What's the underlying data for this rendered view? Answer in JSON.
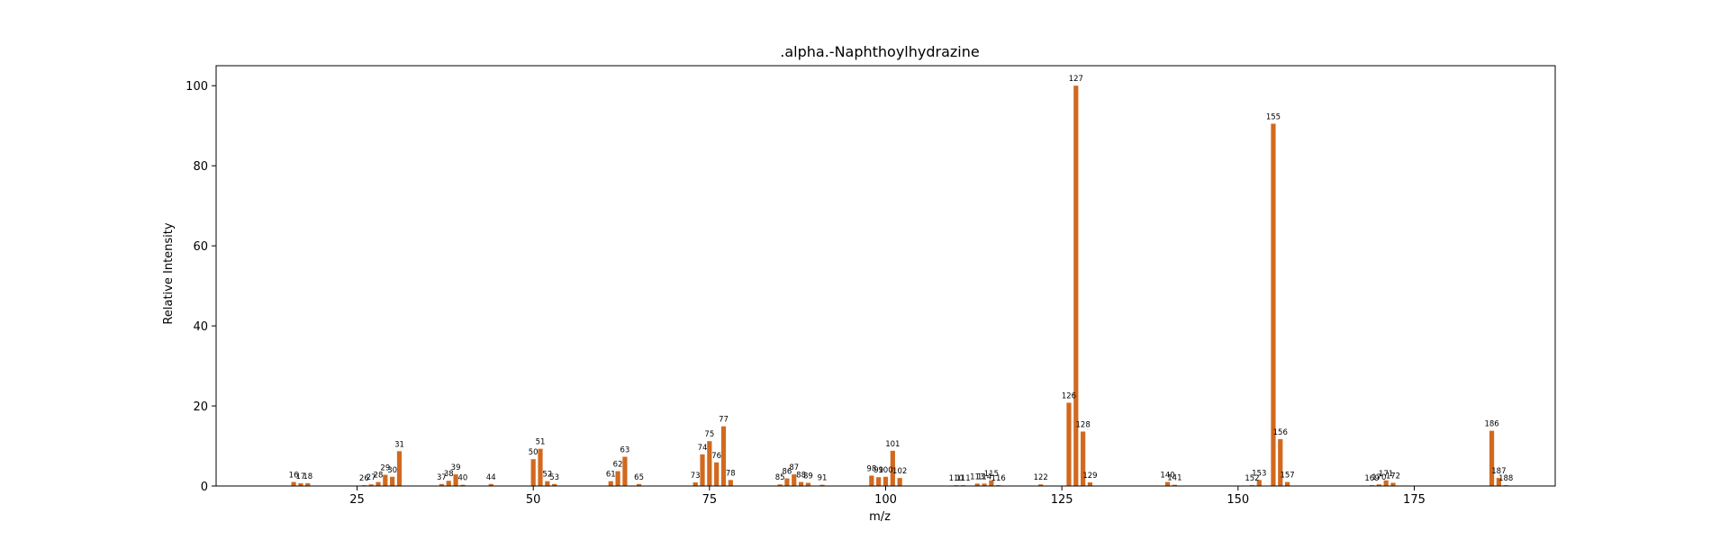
{
  "chart_data": {
    "type": "bar",
    "title": ".alpha.-Naphthoylhydrazine",
    "xlabel": "m/z",
    "ylabel": "Relative Intensity",
    "xlim": [
      5,
      195
    ],
    "ylim": [
      0,
      105
    ],
    "xticks": [
      25,
      50,
      75,
      100,
      125,
      150,
      175
    ],
    "yticks": [
      0,
      20,
      40,
      60,
      80,
      100
    ],
    "grid": false,
    "bar_color": "#d2691e",
    "points": [
      {
        "x": 16,
        "y": 1.0,
        "label": "16"
      },
      {
        "x": 17,
        "y": 0.7,
        "label": "17"
      },
      {
        "x": 18,
        "y": 0.7,
        "label": "18"
      },
      {
        "x": 26,
        "y": 0.2,
        "label": "26"
      },
      {
        "x": 27,
        "y": 0.4,
        "label": "27"
      },
      {
        "x": 28,
        "y": 1.0,
        "label": "28"
      },
      {
        "x": 29,
        "y": 2.8,
        "label": "29"
      },
      {
        "x": 30,
        "y": 2.3,
        "label": "30"
      },
      {
        "x": 31,
        "y": 8.7,
        "label": "31"
      },
      {
        "x": 37,
        "y": 0.5,
        "label": "37"
      },
      {
        "x": 38,
        "y": 1.3,
        "label": "38"
      },
      {
        "x": 39,
        "y": 2.9,
        "label": "39"
      },
      {
        "x": 40,
        "y": 0.3,
        "label": "40"
      },
      {
        "x": 44,
        "y": 0.5,
        "label": "44"
      },
      {
        "x": 50,
        "y": 6.7,
        "label": "50"
      },
      {
        "x": 51,
        "y": 9.3,
        "label": "51"
      },
      {
        "x": 52,
        "y": 1.2,
        "label": "52"
      },
      {
        "x": 53,
        "y": 0.5,
        "label": "53"
      },
      {
        "x": 61,
        "y": 1.2,
        "label": "61"
      },
      {
        "x": 62,
        "y": 3.7,
        "label": "62"
      },
      {
        "x": 63,
        "y": 7.3,
        "label": "63"
      },
      {
        "x": 65,
        "y": 0.5,
        "label": "65"
      },
      {
        "x": 73,
        "y": 0.9,
        "label": "73"
      },
      {
        "x": 74,
        "y": 7.9,
        "label": "74"
      },
      {
        "x": 75,
        "y": 11.2,
        "label": "75"
      },
      {
        "x": 76,
        "y": 5.9,
        "label": "76"
      },
      {
        "x": 77,
        "y": 14.9,
        "label": "77"
      },
      {
        "x": 78,
        "y": 1.5,
        "label": "78"
      },
      {
        "x": 85,
        "y": 0.4,
        "label": "85"
      },
      {
        "x": 86,
        "y": 1.9,
        "label": "86"
      },
      {
        "x": 87,
        "y": 2.9,
        "label": "87"
      },
      {
        "x": 88,
        "y": 1.0,
        "label": "88"
      },
      {
        "x": 89,
        "y": 0.8,
        "label": "89"
      },
      {
        "x": 91,
        "y": 0.3,
        "label": "91"
      },
      {
        "x": 98,
        "y": 2.6,
        "label": "98"
      },
      {
        "x": 99,
        "y": 2.2,
        "label": "99"
      },
      {
        "x": 100,
        "y": 2.3,
        "label": "100"
      },
      {
        "x": 101,
        "y": 8.8,
        "label": "101"
      },
      {
        "x": 102,
        "y": 2.0,
        "label": "102"
      },
      {
        "x": 110,
        "y": 0.2,
        "label": "110"
      },
      {
        "x": 111,
        "y": 0.2,
        "label": "111"
      },
      {
        "x": 113,
        "y": 0.6,
        "label": "113"
      },
      {
        "x": 114,
        "y": 0.6,
        "label": "114"
      },
      {
        "x": 115,
        "y": 1.4,
        "label": "115"
      },
      {
        "x": 116,
        "y": 0.2,
        "label": "116"
      },
      {
        "x": 122,
        "y": 0.4,
        "label": "122"
      },
      {
        "x": 126,
        "y": 20.8,
        "label": "126"
      },
      {
        "x": 127,
        "y": 100.0,
        "label": "127"
      },
      {
        "x": 128,
        "y": 13.6,
        "label": "128"
      },
      {
        "x": 129,
        "y": 0.9,
        "label": "129"
      },
      {
        "x": 140,
        "y": 1.0,
        "label": "140"
      },
      {
        "x": 141,
        "y": 0.3,
        "label": "141"
      },
      {
        "x": 152,
        "y": 0.2,
        "label": "152"
      },
      {
        "x": 153,
        "y": 1.5,
        "label": "153"
      },
      {
        "x": 155,
        "y": 90.5,
        "label": "155"
      },
      {
        "x": 156,
        "y": 11.7,
        "label": "156"
      },
      {
        "x": 157,
        "y": 1.0,
        "label": "157"
      },
      {
        "x": 169,
        "y": 0.2,
        "label": "169"
      },
      {
        "x": 170,
        "y": 0.4,
        "label": "170"
      },
      {
        "x": 171,
        "y": 1.4,
        "label": "171"
      },
      {
        "x": 172,
        "y": 0.8,
        "label": "172"
      },
      {
        "x": 186,
        "y": 13.8,
        "label": "186"
      },
      {
        "x": 187,
        "y": 2.0,
        "label": "187"
      },
      {
        "x": 188,
        "y": 0.2,
        "label": "188"
      }
    ]
  }
}
